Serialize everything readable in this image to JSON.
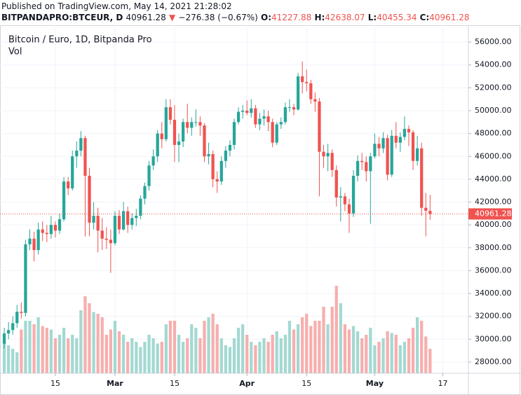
{
  "header": {
    "published": "Published on TradingView.com, May 14, 2021 21:28:02",
    "symbol": "BITPANDAPRO:BTCEUR, D",
    "last": "40961.28",
    "arrow": "▼",
    "change": "−276.38 (−0.67%)",
    "ohlc": [
      {
        "label": "O:",
        "value": "41227.88"
      },
      {
        "label": "H:",
        "value": "42638.07"
      },
      {
        "label": "L:",
        "value": "40455.34"
      },
      {
        "label": "C:",
        "value": "40961.28"
      }
    ]
  },
  "chart_data": {
    "type": "candlestick",
    "title": "Bitcoin / Euro, 1D, Bitpanda Pro",
    "volume_label": "Vol",
    "up_color": "#26a69a",
    "down_color": "#ef5350",
    "volume_up_color": "#a3d9d2",
    "volume_down_color": "#f7aeae",
    "grid": true,
    "x": [
      "2021-02-03",
      "2021-02-04",
      "2021-02-05",
      "2021-02-06",
      "2021-02-07",
      "2021-02-08",
      "2021-02-09",
      "2021-02-10",
      "2021-02-11",
      "2021-02-12",
      "2021-02-13",
      "2021-02-14",
      "2021-02-15",
      "2021-02-16",
      "2021-02-17",
      "2021-02-18",
      "2021-02-19",
      "2021-02-20",
      "2021-02-21",
      "2021-02-22",
      "2021-02-23",
      "2021-02-24",
      "2021-02-25",
      "2021-02-26",
      "2021-02-27",
      "2021-02-28",
      "2021-03-01",
      "2021-03-02",
      "2021-03-03",
      "2021-03-04",
      "2021-03-05",
      "2021-03-06",
      "2021-03-07",
      "2021-03-08",
      "2021-03-09",
      "2021-03-10",
      "2021-03-11",
      "2021-03-12",
      "2021-03-13",
      "2021-03-14",
      "2021-03-15",
      "2021-03-16",
      "2021-03-17",
      "2021-03-18",
      "2021-03-19",
      "2021-03-20",
      "2021-03-21",
      "2021-03-22",
      "2021-03-23",
      "2021-03-24",
      "2021-03-25",
      "2021-03-26",
      "2021-03-27",
      "2021-03-28",
      "2021-03-29",
      "2021-03-30",
      "2021-03-31",
      "2021-04-01",
      "2021-04-02",
      "2021-04-03",
      "2021-04-04",
      "2021-04-05",
      "2021-04-06",
      "2021-04-07",
      "2021-04-08",
      "2021-04-09",
      "2021-04-10",
      "2021-04-11",
      "2021-04-12",
      "2021-04-13",
      "2021-04-14",
      "2021-04-15",
      "2021-04-16",
      "2021-04-17",
      "2021-04-18",
      "2021-04-19",
      "2021-04-20",
      "2021-04-21",
      "2021-04-22",
      "2021-04-23",
      "2021-04-24",
      "2021-04-25",
      "2021-04-26",
      "2021-04-27",
      "2021-04-28",
      "2021-04-29",
      "2021-04-30",
      "2021-05-01",
      "2021-05-02",
      "2021-05-03",
      "2021-05-04",
      "2021-05-05",
      "2021-05-06",
      "2021-05-07",
      "2021-05-08",
      "2021-05-09",
      "2021-05-10",
      "2021-05-11",
      "2021-05-12",
      "2021-05-13",
      "2021-05-14"
    ],
    "open": [
      29600,
      30500,
      30800,
      31400,
      32400,
      32300,
      38300,
      38800,
      37800,
      39600,
      39300,
      39200,
      40000,
      39500,
      40500,
      43800,
      43200,
      46000,
      46500,
      47600,
      44300,
      40200,
      40800,
      39500,
      38800,
      38700,
      38400,
      40800,
      39600,
      41200,
      40000,
      40600,
      40800,
      42300,
      43400,
      45200,
      46000,
      48000,
      47500,
      50300,
      49200,
      47000,
      47300,
      49000,
      48500,
      49000,
      49000,
      48700,
      46000,
      46200,
      44000,
      43800,
      45600,
      46500,
      47000,
      49000,
      49900,
      50000,
      49800,
      50200,
      48800,
      49300,
      49500,
      49000,
      47200,
      48800,
      49000,
      50300,
      50300,
      50100,
      53000,
      52500,
      52400,
      51000,
      50800,
      46400,
      46000,
      46300,
      44800,
      42400,
      42500,
      41800,
      41000,
      44300,
      45600,
      45500,
      44700,
      46000,
      47100,
      46700,
      47600,
      44400,
      47800,
      47200,
      47700,
      48400,
      48100,
      45600,
      46700,
      41500,
      41227.88
    ],
    "high": [
      31000,
      31500,
      32000,
      33000,
      33200,
      38700,
      39600,
      39400,
      40200,
      40300,
      40000,
      40800,
      40300,
      41000,
      44200,
      44200,
      46500,
      47300,
      48200,
      47800,
      45000,
      42000,
      41500,
      40600,
      39800,
      39600,
      41200,
      41300,
      42000,
      41600,
      41000,
      41400,
      42600,
      43700,
      45600,
      46600,
      48300,
      49000,
      51000,
      51000,
      50500,
      48000,
      49300,
      50600,
      49400,
      50100,
      49500,
      48900,
      47200,
      46500,
      44700,
      46000,
      46900,
      47400,
      49300,
      50300,
      50500,
      50900,
      51000,
      50500,
      49800,
      50100,
      50000,
      49300,
      49000,
      49400,
      50700,
      51000,
      50600,
      53300,
      54300,
      53600,
      52700,
      51600,
      51100,
      47000,
      47100,
      46600,
      45200,
      43300,
      42800,
      42300,
      44800,
      46100,
      46300,
      46000,
      46300,
      48000,
      47700,
      48100,
      47900,
      48300,
      49000,
      48100,
      49500,
      48700,
      48300,
      47800,
      47200,
      42800,
      42638.07
    ],
    "low": [
      29200,
      30000,
      30400,
      31000,
      31800,
      32000,
      37800,
      36800,
      37400,
      38600,
      38500,
      38800,
      38900,
      39200,
      40300,
      42600,
      43000,
      45000,
      46000,
      39000,
      39000,
      39600,
      37600,
      37800,
      37900,
      35800,
      38200,
      39200,
      39500,
      39300,
      39600,
      39900,
      40500,
      41800,
      43000,
      44800,
      45500,
      46700,
      47300,
      48800,
      45500,
      45500,
      46800,
      48000,
      47800,
      48600,
      47800,
      45500,
      45300,
      43300,
      42800,
      43500,
      45000,
      46000,
      46600,
      48800,
      49300,
      49600,
      49400,
      48500,
      48300,
      48700,
      48200,
      46800,
      47000,
      48400,
      48800,
      49900,
      49600,
      50000,
      51500,
      51700,
      50600,
      49900,
      42500,
      45000,
      44700,
      44200,
      41600,
      40300,
      41200,
      39300,
      40700,
      43800,
      44800,
      43800,
      40100,
      45800,
      46000,
      46300,
      43900,
      44200,
      46700,
      46400,
      47400,
      46900,
      44800,
      45200,
      40800,
      39000,
      40455.34
    ],
    "close": [
      30500,
      30800,
      31400,
      32400,
      32300,
      38300,
      38800,
      37800,
      39600,
      39300,
      39200,
      40000,
      39500,
      40500,
      43800,
      43200,
      46000,
      46500,
      47600,
      44300,
      40200,
      40800,
      39500,
      38800,
      38700,
      38400,
      40800,
      39600,
      41200,
      40000,
      40600,
      40800,
      42300,
      43400,
      45200,
      46000,
      48000,
      47500,
      50300,
      49200,
      47000,
      47300,
      49000,
      48500,
      49000,
      49000,
      48700,
      46000,
      46200,
      44000,
      43800,
      45600,
      46500,
      47000,
      49000,
      49900,
      50000,
      49800,
      50200,
      48800,
      49300,
      49500,
      49000,
      47200,
      48800,
      49000,
      50300,
      50300,
      50100,
      53000,
      52500,
      52400,
      51000,
      50800,
      46400,
      46000,
      46300,
      44800,
      42400,
      42500,
      41800,
      41000,
      44300,
      45600,
      45500,
      44700,
      46000,
      47100,
      46700,
      47600,
      44400,
      47800,
      47200,
      47700,
      48400,
      48100,
      45600,
      46700,
      41500,
      41237.66,
      40961.28
    ],
    "volume": [
      18,
      16,
      14,
      12,
      25,
      30,
      30,
      28,
      32,
      27,
      26,
      25,
      20,
      22,
      26,
      20,
      22,
      20,
      36,
      44,
      40,
      35,
      34,
      32,
      22,
      25,
      30,
      24,
      22,
      18,
      20,
      18,
      15,
      18,
      22,
      20,
      17,
      18,
      28,
      30,
      30,
      22,
      18,
      20,
      28,
      26,
      20,
      30,
      32,
      34,
      28,
      20,
      16,
      15,
      20,
      26,
      28,
      22,
      18,
      16,
      18,
      20,
      18,
      22,
      24,
      20,
      22,
      30,
      25,
      28,
      32,
      34,
      27,
      30,
      30,
      38,
      28,
      38,
      50,
      40,
      28,
      25,
      27,
      24,
      20,
      22,
      26,
      16,
      18,
      20,
      24,
      23,
      22,
      16,
      18,
      20,
      26,
      32,
      30,
      21,
      14
    ],
    "xlim": [
      "2021-02-02",
      "2021-05-23"
    ],
    "xticks": [
      {
        "value": "2021-02-15",
        "label": "15"
      },
      {
        "value": "2021-03-01",
        "label": "Mar"
      },
      {
        "value": "2021-03-15",
        "label": "15"
      },
      {
        "value": "2021-04-01",
        "label": "Apr"
      },
      {
        "value": "2021-04-15",
        "label": "15"
      },
      {
        "value": "2021-05-01",
        "label": "May"
      },
      {
        "value": "2021-05-17",
        "label": "17"
      }
    ],
    "ylim": [
      27015,
      57477
    ],
    "yticks": [
      {
        "value": 28000,
        "label": "28000.00"
      },
      {
        "value": 30000,
        "label": "30000.00"
      },
      {
        "value": 32000,
        "label": "32000.00"
      },
      {
        "value": 34000,
        "label": "34000.00"
      },
      {
        "value": 36000,
        "label": "36000.00"
      },
      {
        "value": 38000,
        "label": "38000.00"
      },
      {
        "value": 40000,
        "label": "40000.00"
      },
      {
        "value": 42000,
        "label": "42000.00"
      },
      {
        "value": 44000,
        "label": "44000.00"
      },
      {
        "value": 46000,
        "label": "46000.00"
      },
      {
        "value": 48000,
        "label": "48000.00"
      },
      {
        "value": 50000,
        "label": "50000.00"
      },
      {
        "value": 52000,
        "label": "52000.00"
      },
      {
        "value": 54000,
        "label": "54000.00"
      },
      {
        "value": 56000,
        "label": "56000.00"
      }
    ]
  }
}
